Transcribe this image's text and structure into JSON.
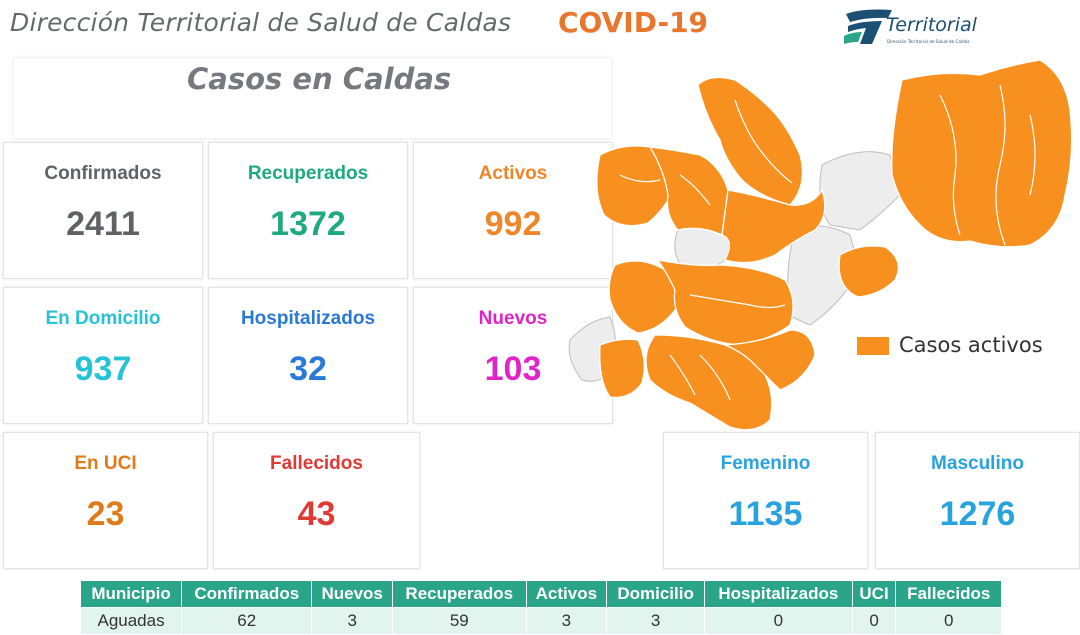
{
  "header": {
    "title": "Dirección Territorial de Salud de Caldas",
    "badge": "COVID-19",
    "logo_text": "Territorial",
    "logo_subtext": "Dirección Territorial de Salud de Caldas"
  },
  "subtitle": "Casos en Caldas",
  "cards": {
    "confirmados": {
      "label": "Confirmados",
      "value": "2411",
      "color": "#5f6368"
    },
    "recuperados": {
      "label": "Recuperados",
      "value": "1372",
      "color": "#1fa97f"
    },
    "activos": {
      "label": "Activos",
      "value": "992",
      "color": "#f0862a"
    },
    "domicilio": {
      "label": "En Domicilio",
      "value": "937",
      "color": "#26c3d6"
    },
    "hospitalizados": {
      "label": "Hospitalizados",
      "value": "32",
      "color": "#2a79d6"
    },
    "nuevos": {
      "label": "Nuevos",
      "value": "103",
      "color": "#e025c7"
    },
    "uci": {
      "label": "En UCI",
      "value": "23",
      "color": "#e07b1c"
    },
    "fallecidos": {
      "label": "Fallecidos",
      "value": "43",
      "color": "#e03a34"
    },
    "femenino": {
      "label": "Femenino",
      "value": "1135",
      "color": "#28a3e0"
    },
    "masculino": {
      "label": "Masculino",
      "value": "1276",
      "color": "#28a3e0"
    }
  },
  "map": {
    "legend_label": "Casos activos",
    "active_color": "#f7901e",
    "inactive_color": "#ededed"
  },
  "table": {
    "headers": [
      "Municipio",
      "Confirmados",
      "Nuevos",
      "Recuperados",
      "Activos",
      "Domicilio",
      "Hospitalizados",
      "UCI",
      "Fallecidos"
    ],
    "rows": [
      [
        "Aguadas",
        "62",
        "3",
        "59",
        "3",
        "3",
        "0",
        "0",
        "0"
      ]
    ]
  }
}
